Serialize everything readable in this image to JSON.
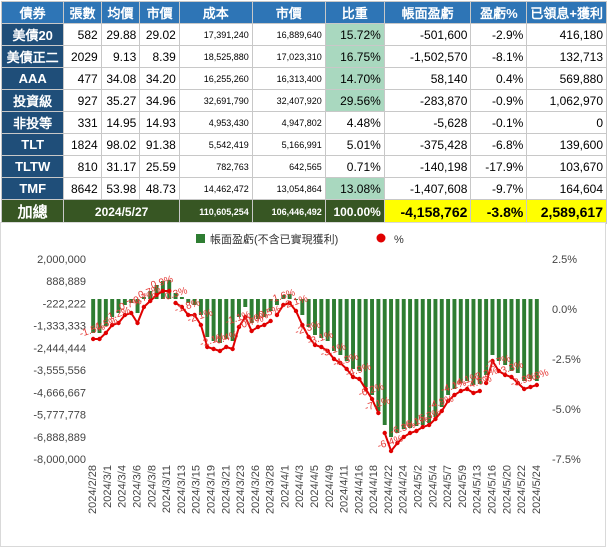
{
  "table": {
    "headers": [
      "債券",
      "張數",
      "均價",
      "市價",
      "成本",
      "市價",
      "比重",
      "帳面盈虧",
      "盈虧%",
      "已領息+獲利"
    ],
    "rows": [
      {
        "name": "美債20",
        "qty": "582",
        "avg": "29.88",
        "price": "29.02",
        "cost": "17,391,240",
        "value": "16,889,640",
        "weight": "15.72%",
        "pl": "-501,600",
        "plpct": "-2.9%",
        "income": "416,180"
      },
      {
        "name": "美債正二",
        "qty": "2029",
        "avg": "9.13",
        "price": "8.39",
        "cost": "18,525,880",
        "value": "17,023,310",
        "weight": "16.75%",
        "pl": "-1,502,570",
        "plpct": "-8.1%",
        "income": "132,713"
      },
      {
        "name": "AAA",
        "qty": "477",
        "avg": "34.08",
        "price": "34.20",
        "cost": "16,255,260",
        "value": "16,313,400",
        "weight": "14.70%",
        "pl": "58,140",
        "plpct": "0.4%",
        "income": "569,880"
      },
      {
        "name": "投資級",
        "qty": "927",
        "avg": "35.27",
        "price": "34.96",
        "cost": "32,691,790",
        "value": "32,407,920",
        "weight": "29.56%",
        "pl": "-283,870",
        "plpct": "-0.9%",
        "income": "1,062,970"
      },
      {
        "name": "非投等",
        "qty": "331",
        "avg": "14.95",
        "price": "14.93",
        "cost": "4,953,430",
        "value": "4,947,802",
        "weight": "4.48%",
        "pl": "-5,628",
        "plpct": "-0.1%",
        "income": "0"
      },
      {
        "name": "TLT",
        "qty": "1824",
        "avg": "98.02",
        "price": "91.38",
        "cost": "5,542,419",
        "value": "5,166,991",
        "weight": "5.01%",
        "pl": "-375,428",
        "plpct": "-6.8%",
        "income": "139,600"
      },
      {
        "name": "TLTW",
        "qty": "810",
        "avg": "31.17",
        "price": "25.59",
        "cost": "782,763",
        "value": "642,565",
        "weight": "0.71%",
        "pl": "-140,198",
        "plpct": "-17.9%",
        "income": "103,670"
      },
      {
        "name": "TMF",
        "qty": "8642",
        "avg": "53.98",
        "price": "48.73",
        "cost": "14,462,472",
        "value": "13,054,864",
        "weight": "13.08%",
        "pl": "-1,407,608",
        "plpct": "-9.7%",
        "income": "164,604"
      }
    ],
    "total": {
      "label": "加總",
      "date": "2024/5/27",
      "cost": "110,605,254",
      "value": "106,446,492",
      "weight": "100.00%",
      "pl": "-4,158,762",
      "plpct": "-3.8%",
      "income": "2,589,617"
    }
  },
  "colors": {
    "header": "#2e75b6",
    "name_cell": "#1f4e79",
    "weight_highlight": "#a9d8bf",
    "total_bg": "#375623",
    "total_highlight": "#ffff00",
    "bar": "#2e7d32",
    "line": "#e00000",
    "label": "#e53935"
  },
  "chart_data": {
    "type": "bar+line",
    "legend": [
      "帳面盈虧(不含已實現獲利)",
      "%"
    ],
    "legend_position": "top",
    "left_axis": {
      "ylim": [
        -8000000,
        2000000
      ],
      "ticks": [
        "2,000,000",
        "888,889",
        "-222,222",
        "-1,333,333",
        "-2,444,444",
        "-3,555,556",
        "-4,666,667",
        "-5,777,778",
        "-6,888,889",
        "-8,000,000"
      ]
    },
    "right_axis": {
      "ylim": [
        -7.5,
        2.5
      ],
      "ticks": [
        "2.5%",
        "0.0%",
        "-2.5%",
        "-5.0%",
        "-7.5%"
      ]
    },
    "x_tick_labels": [
      "2024/2/28",
      "2024/3/1",
      "2024/3/4",
      "2024/3/6",
      "2024/3/8",
      "2024/3/11",
      "2024/3/13",
      "2024/3/15",
      "2024/3/19",
      "2024/3/21",
      "2024/3/23",
      "2024/3/26",
      "2024/3/28",
      "2024/4/1",
      "2024/4/3",
      "2024/4/5",
      "2024/4/9",
      "2024/4/11",
      "2024/4/16",
      "2024/4/18",
      "2024/4/22",
      "2024/4/24",
      "2024/5/2",
      "2024/5/4",
      "2024/5/7",
      "2024/5/9",
      "2024/5/13",
      "2024/5/16",
      "2024/5/20",
      "2024/5/22",
      "2024/5/24"
    ],
    "series": [
      {
        "name": "帳面盈虧(不含已實現獲利)",
        "type": "bar",
        "values": [
          -1700000,
          -1700000,
          -1350000,
          -900000,
          -700000,
          -300000,
          -200000,
          -700000,
          100000,
          400000,
          700000,
          900000,
          950000,
          300000,
          100000,
          -200000,
          -300000,
          -800000,
          -1900000,
          -2100000,
          -2200000,
          -2000000,
          -2100000,
          -900000,
          -400000,
          -1200000,
          -1000000,
          -900000,
          -600000,
          -300000,
          200000,
          250000,
          -50000,
          -800000,
          -1400000,
          -1800000,
          -1950000,
          -2100000,
          -2600000,
          -2800000,
          -3100000,
          -3500000,
          -3600000,
          -4400000,
          -4800000,
          -5600000,
          -6300000,
          -6900000,
          -6700000,
          -6500000,
          -6450000,
          -6350000,
          -6300000,
          -6200000,
          -5900000,
          -5400000,
          -4800000,
          -4500000,
          -4200000,
          -4100000,
          -4300000,
          -4250000,
          -3800000,
          -2800000,
          -3100000,
          -3300000,
          -3600000,
          -3700000,
          -4100000,
          -4000000,
          -4100000
        ]
      },
      {
        "name": "%",
        "type": "line",
        "values": [
          -1.5,
          -1.5,
          -1.2,
          -0.8,
          -0.7,
          -0.3,
          -0.2,
          -0.7,
          0.1,
          0.4,
          0.7,
          0.9,
          0.9,
          0.3,
          0.1,
          -0.3,
          -0.3,
          -0.8,
          -1.9,
          -2.0,
          -2.1,
          -1.9,
          -2.0,
          -0.9,
          -0.4,
          -1.1,
          -0.9,
          -0.8,
          -0.6,
          -0.3,
          0.2,
          0.3,
          -0.1,
          -0.8,
          -1.4,
          -1.8,
          -1.9,
          -2.1,
          -2.5,
          -2.7,
          -3.0,
          -3.4,
          -3.5,
          -4.0,
          -4.5,
          -5.2,
          -6.2,
          -7.1,
          -6.7,
          -6.4,
          -6.2,
          -6.1,
          -5.9,
          -5.8,
          -5.5,
          -5.1,
          -4.6,
          -4.3,
          -4.1,
          -4.0,
          -4.2,
          -4.1,
          -3.7,
          -2.6,
          -3.1,
          -3.3,
          -3.4,
          -3.7,
          -4.0,
          -3.9,
          -3.8
        ]
      }
    ],
    "data_labels": [
      "-1.5%",
      "-1.5%",
      "-1.2%",
      "0.7%",
      "-0.7%",
      "0.7%",
      "0.9%",
      "-0.3%",
      "-1.8%",
      "-2.1%",
      "-2.1%",
      "-0.4%",
      "-1.1%",
      "-0.7%",
      "0.0%",
      "0.5%",
      "-1.6%",
      "-2.1%",
      "-2.3%",
      "-3.1%",
      "-3.1%",
      "-4.3%",
      "-4.9%",
      "-6.2%",
      "-7.1%",
      "-6.4%",
      "-6.3%",
      "-6.1%",
      "-5.3%",
      "-4.9%",
      "-4.1%",
      "-4.1%",
      "-4.6%",
      "-2.2%",
      "-2.7%",
      "-3.3%",
      "-3.9%",
      "-3.8%"
    ]
  }
}
